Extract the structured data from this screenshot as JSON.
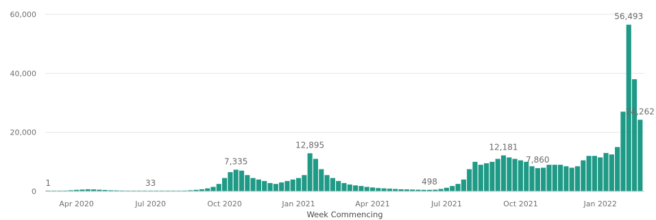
{
  "chart_data": {
    "type": "bar",
    "title": "",
    "xlabel": "Week Commencing",
    "ylabel": "",
    "ylim": [
      0,
      60000
    ],
    "grid": true,
    "legend": "none",
    "bar_color": "#1f9a86",
    "y_ticks": [
      "0",
      "20,000",
      "40,000",
      "60,000"
    ],
    "y_tick_values": [
      0,
      20000,
      40000,
      60000
    ],
    "x_tick_labels": [
      "Apr 2020",
      "Jul 2020",
      "Oct 2020",
      "Jan 2021",
      "Apr 2021",
      "Jul 2021",
      "Oct 2021",
      "Jan 2022"
    ],
    "x_tick_week_index": [
      5,
      18,
      31,
      44,
      57,
      70,
      83,
      97
    ],
    "values": [
      1,
      150,
      200,
      250,
      350,
      500,
      600,
      700,
      650,
      550,
      450,
      350,
      300,
      250,
      200,
      150,
      120,
      100,
      33,
      80,
      100,
      120,
      150,
      200,
      250,
      350,
      500,
      700,
      1000,
      1500,
      2500,
      4500,
      6500,
      7335,
      7000,
      5500,
      4500,
      4000,
      3500,
      2800,
      2500,
      3000,
      3500,
      4000,
      4500,
      5500,
      12895,
      11000,
      7500,
      5500,
      4500,
      3500,
      2800,
      2300,
      2000,
      1800,
      1500,
      1300,
      1100,
      1000,
      900,
      800,
      700,
      650,
      600,
      550,
      500,
      498,
      550,
      800,
      1200,
      1800,
      2500,
      4000,
      7500,
      10000,
      9000,
      9500,
      10000,
      11000,
      12181,
      11500,
      11000,
      10500,
      10000,
      8500,
      7860,
      8000,
      9000,
      9000,
      9000,
      8500,
      8000,
      8500,
      10500,
      12000,
      12000,
      11500,
      13000,
      12500,
      15000,
      27000,
      56493,
      38000,
      24262
    ],
    "data_labels": [
      {
        "index": 0,
        "text": "1"
      },
      {
        "index": 18,
        "text": "33"
      },
      {
        "index": 33,
        "text": "7,335"
      },
      {
        "index": 46,
        "text": "12,895"
      },
      {
        "index": 67,
        "text": "498"
      },
      {
        "index": 80,
        "text": "12,181"
      },
      {
        "index": 86,
        "text": "7,860"
      },
      {
        "index": 102,
        "text": "56,493"
      },
      {
        "index": 104,
        "text": "24,262"
      }
    ]
  }
}
